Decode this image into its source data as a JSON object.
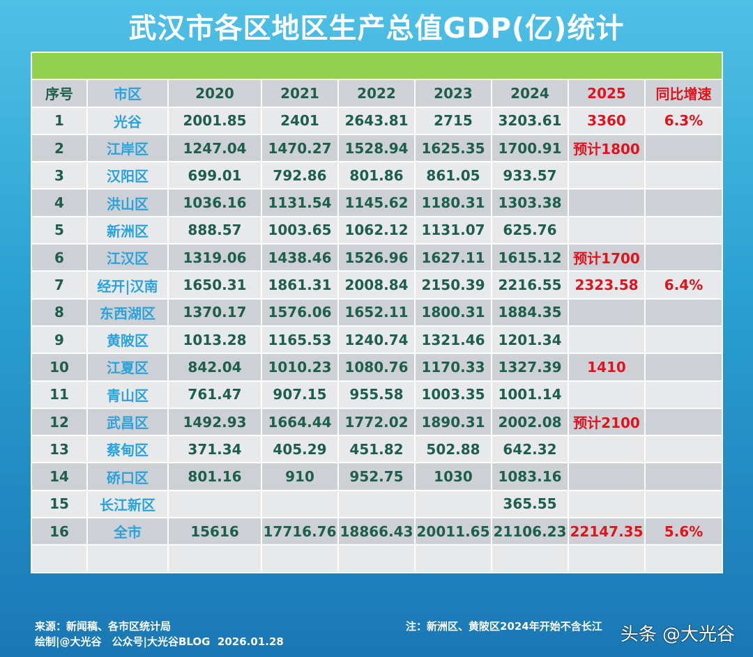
{
  "title": "武汉市各区地区生产总值GDP(亿)统计",
  "headers": [
    "序号",
    "市区",
    "2020",
    "2021",
    "2022",
    "2023",
    "2024",
    "2025",
    "同比增速"
  ],
  "rows": [
    [
      "1",
      "光谷",
      "2001.85",
      "2401",
      "2643.81",
      "2715",
      "3203.61",
      "3360",
      "6.3%"
    ],
    [
      "2",
      "江岸区",
      "1247.04",
      "1470.27",
      "1528.94",
      "1625.35",
      "1700.91",
      "预计1800",
      ""
    ],
    [
      "3",
      "汉阳区",
      "699.01",
      "792.86",
      "801.86",
      "861.05",
      "933.57",
      "",
      ""
    ],
    [
      "4",
      "洪山区",
      "1036.16",
      "1131.54",
      "1145.62",
      "1180.31",
      "1303.38",
      "",
      ""
    ],
    [
      "5",
      "新洲区",
      "888.57",
      "1003.65",
      "1062.12",
      "1131.07",
      "625.76",
      "",
      ""
    ],
    [
      "6",
      "江汉区",
      "1319.06",
      "1438.46",
      "1526.96",
      "1627.11",
      "1615.12",
      "预计1700",
      ""
    ],
    [
      "7",
      "经开|汉南",
      "1650.31",
      "1861.31",
      "2008.84",
      "2150.39",
      "2216.55",
      "2323.58",
      "6.4%"
    ],
    [
      "8",
      "东西湖区",
      "1370.17",
      "1576.06",
      "1652.11",
      "1800.31",
      "1884.35",
      "",
      ""
    ],
    [
      "9",
      "黄陂区",
      "1013.28",
      "1165.53",
      "1240.74",
      "1321.46",
      "1201.34",
      "",
      ""
    ],
    [
      "10",
      "江夏区",
      "842.04",
      "1010.23",
      "1080.76",
      "1170.33",
      "1327.39",
      "1410",
      ""
    ],
    [
      "11",
      "青山区",
      "761.47",
      "907.15",
      "955.58",
      "1003.35",
      "1001.14",
      "",
      ""
    ],
    [
      "12",
      "武昌区",
      "1492.93",
      "1664.44",
      "1772.02",
      "1890.31",
      "2002.08",
      "预计2100",
      ""
    ],
    [
      "13",
      "蔡甸区",
      "371.34",
      "405.29",
      "451.82",
      "502.88",
      "642.32",
      "",
      ""
    ],
    [
      "14",
      "硚口区",
      "801.16",
      "910",
      "952.75",
      "1030",
      "1083.16",
      "",
      ""
    ],
    [
      "15",
      "长江新区",
      "",
      "",
      "",
      "",
      "365.55",
      "",
      ""
    ],
    [
      "16",
      "全市",
      "15616",
      "17716.76",
      "18866.43",
      "20011.65",
      "21106.23",
      "22147.35",
      "5.6%"
    ]
  ],
  "footer": {
    "source": "来源：新闻稿、各市区统计局",
    "author": "绘制|@大光谷　公众号|大光谷BLOG  2026.01.28",
    "note": "注：新洲区、黄陂区2024年开始不含长江",
    "watermark": "头条 @大光谷"
  },
  "colors": {
    "header_green": "#92d050",
    "number": "#1e5e4c",
    "district": "#2aa3dc",
    "forecast": "#e0141e"
  }
}
